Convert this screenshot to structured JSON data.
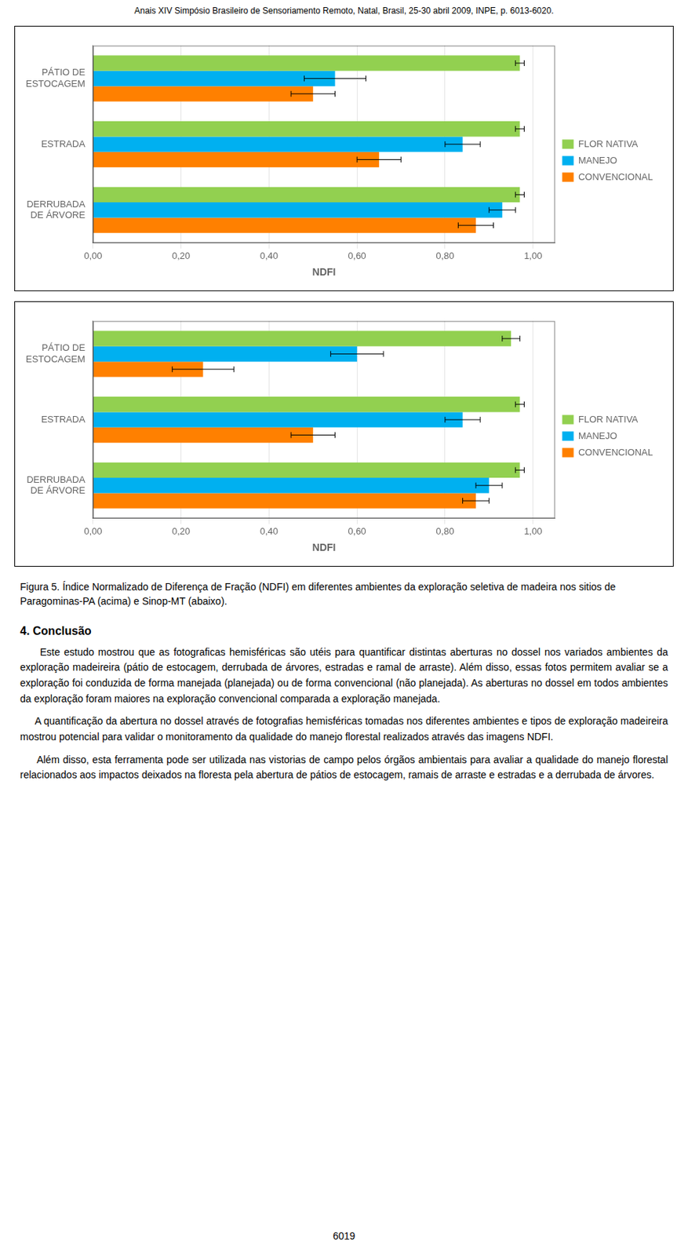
{
  "header": "Anais XIV Simpósio Brasileiro de Sensoriamento Remoto, Natal, Brasil, 25-30 abril 2009, INPE, p. 6013-6020.",
  "chart_data": [
    {
      "type": "bar",
      "orientation": "horizontal",
      "categories": [
        "PÁTIO DE\nESTOCAGEM",
        "ESTRADA",
        "DERRUBADA\nDE ÁRVORE"
      ],
      "series": [
        {
          "name": "FLOR NATIVA",
          "color": "#92D050",
          "values": [
            0.97,
            0.97,
            0.97
          ],
          "errors": [
            0.01,
            0.01,
            0.01
          ]
        },
        {
          "name": "MANEJO",
          "color": "#00B0F0",
          "values": [
            0.55,
            0.84,
            0.93
          ],
          "errors": [
            0.07,
            0.04,
            0.03
          ]
        },
        {
          "name": "CONVENCIONAL",
          "color": "#FF8000",
          "values": [
            0.5,
            0.65,
            0.87
          ],
          "errors": [
            0.05,
            0.05,
            0.04
          ]
        }
      ],
      "xlabel": "NDFI",
      "xlim": [
        0.0,
        1.05
      ],
      "xticks": [
        {
          "value": 0.0,
          "label": "0,00"
        },
        {
          "value": 0.2,
          "label": "0,20"
        },
        {
          "value": 0.4,
          "label": "0,40"
        },
        {
          "value": 0.6,
          "label": "0,60"
        },
        {
          "value": 0.8,
          "label": "0,80"
        },
        {
          "value": 1.0,
          "label": "1,00"
        }
      ],
      "grid": true,
      "legend": "right"
    },
    {
      "type": "bar",
      "orientation": "horizontal",
      "categories": [
        "PÁTIO DE\nESTOCAGEM",
        "ESTRADA",
        "DERRUBADA\nDE ÁRVORE"
      ],
      "series": [
        {
          "name": "FLOR NATIVA",
          "color": "#92D050",
          "values": [
            0.95,
            0.97,
            0.97
          ],
          "errors": [
            0.02,
            0.01,
            0.01
          ]
        },
        {
          "name": "MANEJO",
          "color": "#00B0F0",
          "values": [
            0.6,
            0.84,
            0.9
          ],
          "errors": [
            0.06,
            0.04,
            0.03
          ]
        },
        {
          "name": "CONVENCIONAL",
          "color": "#FF8000",
          "values": [
            0.25,
            0.5,
            0.87
          ],
          "errors": [
            0.07,
            0.05,
            0.03
          ]
        }
      ],
      "xlabel": "NDFI",
      "xlim": [
        0.0,
        1.05
      ],
      "xticks": [
        {
          "value": 0.0,
          "label": "0,00"
        },
        {
          "value": 0.2,
          "label": "0,20"
        },
        {
          "value": 0.4,
          "label": "0,40"
        },
        {
          "value": 0.6,
          "label": "0,60"
        },
        {
          "value": 0.8,
          "label": "0,80"
        },
        {
          "value": 1.0,
          "label": "1,00"
        }
      ],
      "grid": true,
      "legend": "right"
    }
  ],
  "caption": [
    "Figura 5. Índice Normalizado de Diferença de Fração (NDFI) em diferentes ambientes da",
    "exploração seletiva de madeira nos sitios de Paragominas-PA (acima) e Sinop-MT",
    "(abaixo)."
  ],
  "heading": "4. Conclusão",
  "paragraphs": [
    "     Este estudo mostrou que as fotograficas hemisféricas são utéis para quantificar distintas aberturas no dossel nos variados ambientes da exploração madeireira (pátio de estocagem, derrubada de árvores, estradas e ramal de arraste). Além disso, essas fotos permitem avaliar se a exploração foi conduzida de forma manejada (planejada) ou de forma convencional (não planejada). As aberturas no dossel em todos ambientes da exploração foram maiores na exploração convencional comparada a exploração manejada.",
    "     A quantificação da abertura no dossel através de fotografias hemisféricas tomadas nos diferentes ambientes e tipos de exploração madeireira mostrou potencial para validar o monitoramento da qualidade do manejo florestal realizados através das imagens NDFI.",
    "     Além disso, esta ferramenta pode ser utilizada nas vistorias de campo pelos órgãos ambientais para avaliar a qualidade do manejo florestal relacionados aos impactos deixados na floresta pela abertura de pátios de estocagem, ramais de arraste e estradas e a derrubada de árvores."
  ],
  "footer": "6019"
}
